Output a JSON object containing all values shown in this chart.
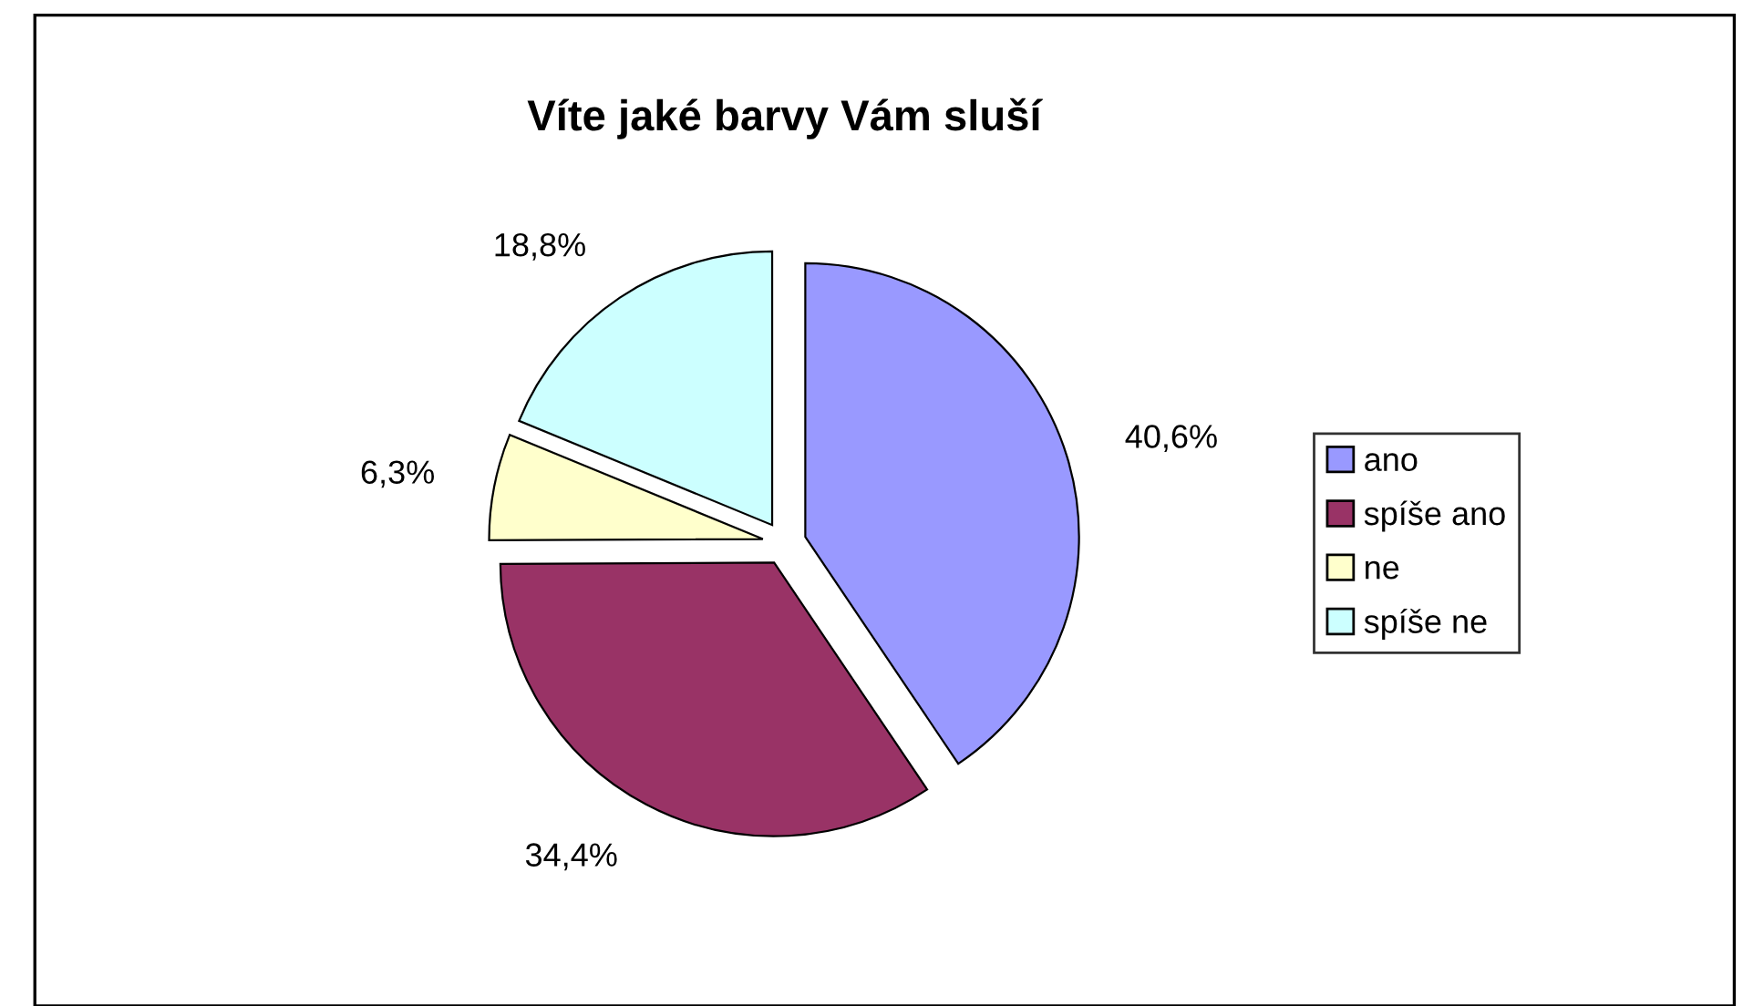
{
  "chart_data": {
    "type": "pie",
    "title": "Víte jaké barvy Vám sluší",
    "categories": [
      "ano",
      "spíše ano",
      "ne",
      "spíše ne"
    ],
    "values": [
      40.6,
      34.4,
      6.3,
      18.8
    ],
    "value_labels": [
      "40,6%",
      "34,4%",
      "6,3%",
      "18,8%"
    ],
    "colors": [
      "#9999ff",
      "#993366",
      "#ffffcc",
      "#ccffff"
    ],
    "legend": "right"
  }
}
